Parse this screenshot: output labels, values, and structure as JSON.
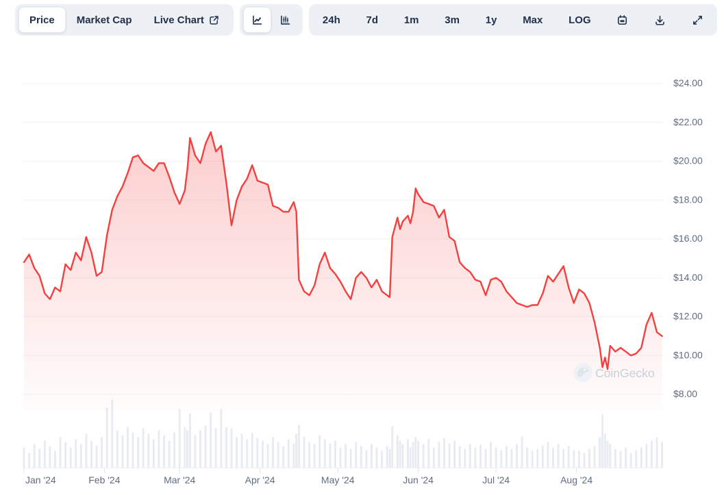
{
  "toolbar": {
    "view_tabs": [
      {
        "label": "Price",
        "selected": true
      },
      {
        "label": "Market Cap",
        "selected": false
      },
      {
        "label": "Live Chart",
        "selected": false,
        "icon": "external-link-icon"
      }
    ],
    "chart_type_toggle": [
      {
        "icon": "line-chart-icon",
        "selected": true
      },
      {
        "icon": "candlestick-chart-icon",
        "selected": false
      }
    ],
    "range_buttons": [
      "24h",
      "7d",
      "1m",
      "3m",
      "1y",
      "Max",
      "LOG"
    ],
    "action_icons": [
      "calendar-icon",
      "download-icon",
      "expand-icon"
    ]
  },
  "watermark": {
    "text": "CoinGecko",
    "icon": "coingecko-gecko-logo"
  },
  "chart_data": {
    "type": "area",
    "title": "Price (USD), Jan 2024 - early Sep 2024",
    "x_axis": {
      "unit": "day_offset_from_2024-01-01",
      "range": [
        0,
        246
      ],
      "ticks": [
        {
          "day": 0,
          "label": "Jan '24"
        },
        {
          "day": 31,
          "label": "Feb '24"
        },
        {
          "day": 60,
          "label": "Mar '24"
        },
        {
          "day": 91,
          "label": "Apr '24"
        },
        {
          "day": 121,
          "label": "May '24"
        },
        {
          "day": 152,
          "label": "Jun '24"
        },
        {
          "day": 182,
          "label": "Jul '24"
        },
        {
          "day": 213,
          "label": "Aug '24"
        }
      ]
    },
    "y_axis": {
      "side": "right",
      "range": [
        8,
        24
      ],
      "grid": true,
      "ticks": [
        {
          "value": 24,
          "label": "$24.00"
        },
        {
          "value": 22,
          "label": "$22.00"
        },
        {
          "value": 20,
          "label": "$20.00"
        },
        {
          "value": 18,
          "label": "$18.00"
        },
        {
          "value": 16,
          "label": "$16.00"
        },
        {
          "value": 14,
          "label": "$14.00"
        },
        {
          "value": 12,
          "label": "$12.00"
        },
        {
          "value": 10,
          "label": "$10.00"
        },
        {
          "value": 8,
          "label": "$8.00"
        }
      ]
    },
    "days": [
      0,
      2,
      4,
      6,
      8,
      10,
      12,
      14,
      16,
      18,
      20,
      22,
      24,
      26,
      28,
      30,
      32,
      34,
      36,
      38,
      40,
      42,
      44,
      46,
      48,
      50,
      52,
      54,
      56,
      58,
      60,
      62,
      63,
      64,
      66,
      68,
      70,
      72,
      74,
      76,
      78,
      80,
      82,
      84,
      86,
      88,
      90,
      92,
      94,
      96,
      98,
      100,
      102,
      104,
      105,
      106,
      108,
      110,
      112,
      114,
      116,
      118,
      120,
      122,
      124,
      126,
      128,
      130,
      132,
      134,
      136,
      138,
      140,
      141,
      142,
      144,
      145,
      146,
      148,
      149,
      150,
      151,
      152,
      154,
      156,
      158,
      160,
      162,
      164,
      166,
      168,
      170,
      172,
      174,
      176,
      178,
      180,
      182,
      184,
      186,
      188,
      190,
      192,
      194,
      196,
      198,
      200,
      202,
      204,
      206,
      208,
      210,
      212,
      214,
      216,
      218,
      220,
      222,
      223,
      224,
      225,
      226,
      228,
      230,
      232,
      234,
      236,
      238,
      240,
      242,
      244,
      246
    ],
    "prices": [
      14.8,
      15.2,
      14.5,
      14.1,
      13.2,
      12.9,
      13.5,
      13.3,
      14.7,
      14.4,
      15.3,
      14.9,
      16.1,
      15.3,
      14.1,
      14.3,
      16.2,
      17.5,
      18.2,
      18.7,
      19.4,
      20.2,
      20.3,
      19.9,
      19.7,
      19.5,
      19.9,
      19.9,
      19.2,
      18.4,
      17.8,
      18.5,
      19.6,
      21.2,
      20.3,
      19.9,
      20.9,
      21.5,
      20.5,
      20.8,
      18.9,
      16.7,
      18.0,
      18.7,
      19.1,
      19.8,
      19.0,
      18.9,
      18.8,
      17.7,
      17.6,
      17.4,
      17.4,
      17.9,
      17.4,
      13.9,
      13.3,
      13.1,
      13.6,
      14.7,
      15.3,
      14.5,
      14.2,
      13.8,
      13.3,
      12.9,
      14.0,
      14.3,
      14.0,
      13.5,
      13.9,
      13.3,
      13.1,
      13.0,
      16.1,
      17.1,
      16.5,
      16.9,
      17.2,
      16.8,
      17.4,
      18.6,
      18.3,
      17.9,
      17.8,
      17.7,
      17.1,
      17.5,
      16.1,
      15.9,
      14.8,
      14.5,
      14.3,
      13.9,
      13.8,
      13.1,
      13.9,
      14.0,
      13.8,
      13.3,
      13.0,
      12.7,
      12.6,
      12.5,
      12.6,
      12.6,
      13.2,
      14.1,
      13.8,
      14.2,
      14.6,
      13.5,
      12.7,
      13.4,
      13.2,
      12.7,
      11.7,
      10.4,
      9.4,
      9.9,
      9.3,
      10.5,
      10.2,
      10.4,
      10.2,
      10.0,
      10.1,
      10.4,
      11.6,
      12.2,
      11.2,
      11.0
    ],
    "volumes_relative": [
      30,
      22,
      35,
      28,
      40,
      32,
      25,
      45,
      38,
      30,
      42,
      35,
      50,
      40,
      33,
      45,
      88,
      100,
      55,
      48,
      60,
      52,
      45,
      58,
      50,
      42,
      55,
      48,
      40,
      52,
      86,
      60,
      55,
      80,
      48,
      55,
      62,
      81,
      58,
      86,
      60,
      58,
      45,
      50,
      42,
      51,
      44,
      40,
      35,
      45,
      38,
      32,
      42,
      36,
      50,
      63,
      46,
      38,
      35,
      48,
      42,
      36,
      40,
      30,
      35,
      28,
      38,
      32,
      26,
      35,
      30,
      25,
      32,
      28,
      61,
      48,
      40,
      35,
      42,
      30,
      38,
      45,
      40,
      35,
      42,
      30,
      38,
      44,
      36,
      40,
      32,
      28,
      35,
      30,
      34,
      28,
      38,
      30,
      26,
      32,
      28,
      35,
      46,
      30,
      25,
      28,
      33,
      38,
      30,
      35,
      28,
      32,
      26,
      25,
      22,
      28,
      32,
      45,
      78,
      50,
      40,
      35,
      28,
      25,
      30,
      22,
      26,
      30,
      35,
      40,
      45,
      38
    ],
    "colors": {
      "line": "#f43f3f",
      "fill_top": "rgba(244,63,63,0.30)",
      "fill_bottom": "rgba(244,63,63,0.01)",
      "volume": "#e8ecf2",
      "grid": "#f0f2f5",
      "axis_text": "#5f6c81",
      "tick_mark": "#dfe4ea",
      "watermark_text": "#c9cfd8",
      "toolbar_bg": "#edf1f6",
      "toolbar_text": "#223049"
    },
    "legend": null
  }
}
